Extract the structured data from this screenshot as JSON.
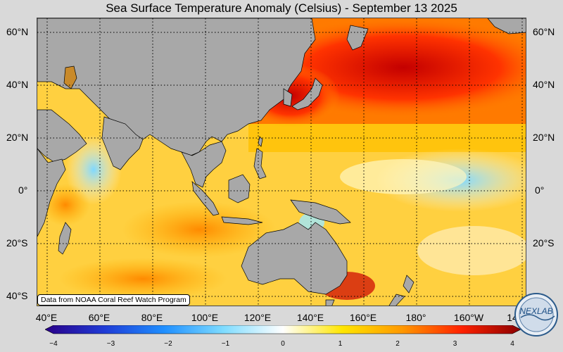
{
  "title": "Sea Surface Temperature Anomaly (Celsius) - September 13 2025",
  "credit": "Data from NOAA Coral Reef Watch Program",
  "logo_text": "NEXLAB",
  "lat_labels": [
    "60°N",
    "40°N",
    "20°N",
    "0°",
    "20°S",
    "40°S"
  ],
  "lon_labels": [
    "40°E",
    "60°E",
    "80°E",
    "100°E",
    "120°E",
    "140°E",
    "160°E",
    "180°",
    "160°W",
    "14"
  ],
  "colorbar": {
    "min": -4,
    "max": 4,
    "ticks": [
      "−4",
      "−3",
      "−2",
      "−1",
      "0",
      "1",
      "2",
      "3",
      "4"
    ],
    "colors": [
      "#2a0088",
      "#1f3bd6",
      "#1f8fff",
      "#7fdcff",
      "#ffffff",
      "#ffe600",
      "#ff9900",
      "#ff2200",
      "#8a0000"
    ]
  },
  "colors": {
    "land": "#a8a8a8",
    "coast": "#000000",
    "background": "#d9d9d9"
  }
}
